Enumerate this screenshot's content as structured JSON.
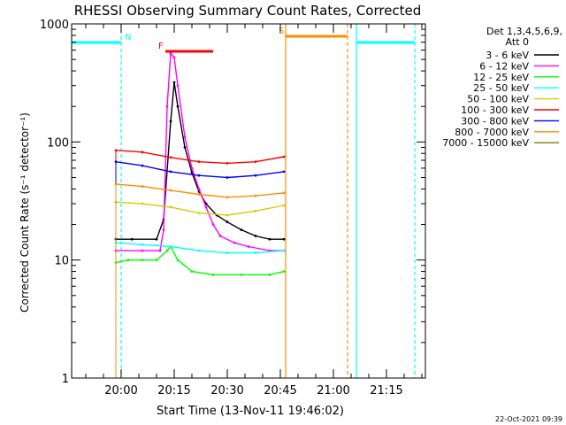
{
  "chart_data": {
    "type": "line",
    "title": "RHESSI Observing Summary Count Rates, Corrected",
    "xlabel": "Start Time (13-Nov-11 19:46:02)",
    "ylabel": "Corrected Count Rate (s⁻¹ detector⁻¹)",
    "yscale": "log",
    "ylim": [
      1,
      1000
    ],
    "xlim_minutes_after_start": [
      0,
      100
    ],
    "y_ticks": [
      "1",
      "10",
      "100",
      "1000"
    ],
    "x_ticks": [
      {
        "label": "20:00",
        "minute": 14
      },
      {
        "label": "20:15",
        "minute": 29
      },
      {
        "label": "20:30",
        "minute": 44
      },
      {
        "label": "20:45",
        "minute": 59
      },
      {
        "label": "21:00",
        "minute": 74
      },
      {
        "label": "21:15",
        "minute": 89
      }
    ],
    "detectors_label": "Det 1,3,4,5,6,9,",
    "attenuator_label": "Att 0",
    "series": [
      {
        "name": "3 - 6 keV",
        "color": "#000000",
        "points": [
          [
            12.5,
            15
          ],
          [
            17,
            15
          ],
          [
            24,
            15
          ],
          [
            26,
            22
          ],
          [
            28,
            150
          ],
          [
            29,
            320
          ],
          [
            30,
            200
          ],
          [
            32,
            90
          ],
          [
            34,
            55
          ],
          [
            36,
            38
          ],
          [
            38,
            30
          ],
          [
            41,
            24
          ],
          [
            44,
            21
          ],
          [
            48,
            18
          ],
          [
            52,
            16
          ],
          [
            56,
            15
          ],
          [
            60,
            15
          ]
        ]
      },
      {
        "name": "6 - 12 keV",
        "color": "#ff00ff",
        "points": [
          [
            12.5,
            12
          ],
          [
            20,
            12
          ],
          [
            25,
            12
          ],
          [
            26,
            18
          ],
          [
            27,
            200
          ],
          [
            28,
            560
          ],
          [
            29,
            520
          ],
          [
            30,
            300
          ],
          [
            32,
            110
          ],
          [
            34,
            60
          ],
          [
            36,
            40
          ],
          [
            38,
            28
          ],
          [
            40,
            20
          ],
          [
            42,
            16
          ],
          [
            46,
            14
          ],
          [
            50,
            13
          ],
          [
            56,
            12
          ],
          [
            60,
            12
          ]
        ]
      },
      {
        "name": "12 - 25 keV",
        "color": "#00ff00",
        "points": [
          [
            12.5,
            9.5
          ],
          [
            16,
            10
          ],
          [
            20,
            10
          ],
          [
            24,
            10
          ],
          [
            27,
            12
          ],
          [
            28,
            13
          ],
          [
            30,
            10
          ],
          [
            34,
            8
          ],
          [
            40,
            7.5
          ],
          [
            48,
            7.5
          ],
          [
            56,
            7.5
          ],
          [
            60,
            8
          ]
        ]
      },
      {
        "name": "25 - 50 keV",
        "color": "#00ffff",
        "points": [
          [
            12.5,
            14
          ],
          [
            20,
            13.5
          ],
          [
            28,
            13
          ],
          [
            36,
            12
          ],
          [
            44,
            11.5
          ],
          [
            52,
            11.5
          ],
          [
            60,
            12
          ]
        ]
      },
      {
        "name": "50 - 100 keV",
        "color": "#d0d000",
        "points": [
          [
            12.5,
            31
          ],
          [
            20,
            30
          ],
          [
            28,
            28
          ],
          [
            36,
            25
          ],
          [
            44,
            24
          ],
          [
            52,
            26
          ],
          [
            60,
            29
          ]
        ]
      },
      {
        "name": "100 - 300 keV",
        "color": "#ff0000",
        "points": [
          [
            12.5,
            85
          ],
          [
            20,
            82
          ],
          [
            28,
            74
          ],
          [
            36,
            68
          ],
          [
            44,
            66
          ],
          [
            52,
            68
          ],
          [
            60,
            75
          ]
        ]
      },
      {
        "name": "300 - 800 keV",
        "color": "#0000ff",
        "points": [
          [
            12.5,
            68
          ],
          [
            20,
            63
          ],
          [
            28,
            56
          ],
          [
            36,
            52
          ],
          [
            44,
            50
          ],
          [
            52,
            52
          ],
          [
            60,
            56
          ]
        ]
      },
      {
        "name": "800 - 7000 keV",
        "color": "#ff8c00",
        "points": [
          [
            12.5,
            44
          ],
          [
            20,
            42
          ],
          [
            28,
            39
          ],
          [
            36,
            36
          ],
          [
            44,
            34
          ],
          [
            52,
            35
          ],
          [
            60,
            37
          ]
        ]
      },
      {
        "name": "7000 - 15000 keV",
        "color": "#808000",
        "points": []
      }
    ],
    "annotations": [
      {
        "label": "N",
        "color": "#00ffff",
        "description": "night",
        "spans_minutes": [
          [
            0,
            14
          ],
          [
            80.5,
            97
          ]
        ]
      },
      {
        "label": "F",
        "color": "#ff0000",
        "description": "flare",
        "spans_minutes": [
          [
            26.5,
            40
          ]
        ]
      },
      {
        "label": "S",
        "color": "#ff8c00",
        "description": "SAA",
        "spans_minutes": [
          [
            60.5,
            78
          ]
        ]
      }
    ],
    "vlines": [
      {
        "minute": 0,
        "color": "#00ffff",
        "style": "solid"
      },
      {
        "minute": 14,
        "color": "#00ffff",
        "style": "dashed"
      },
      {
        "minute": 80.5,
        "color": "#00ffff",
        "style": "solid"
      },
      {
        "minute": 97,
        "color": "#00ffff",
        "style": "dashed"
      },
      {
        "minute": 60.5,
        "color": "#ff8c00",
        "style": "solid"
      },
      {
        "minute": 78,
        "color": "#ff8c00",
        "style": "dashed"
      }
    ],
    "grid": false,
    "legend_position": "right"
  },
  "footer": {
    "timestamp": "22-Oct-2021 09:39"
  }
}
